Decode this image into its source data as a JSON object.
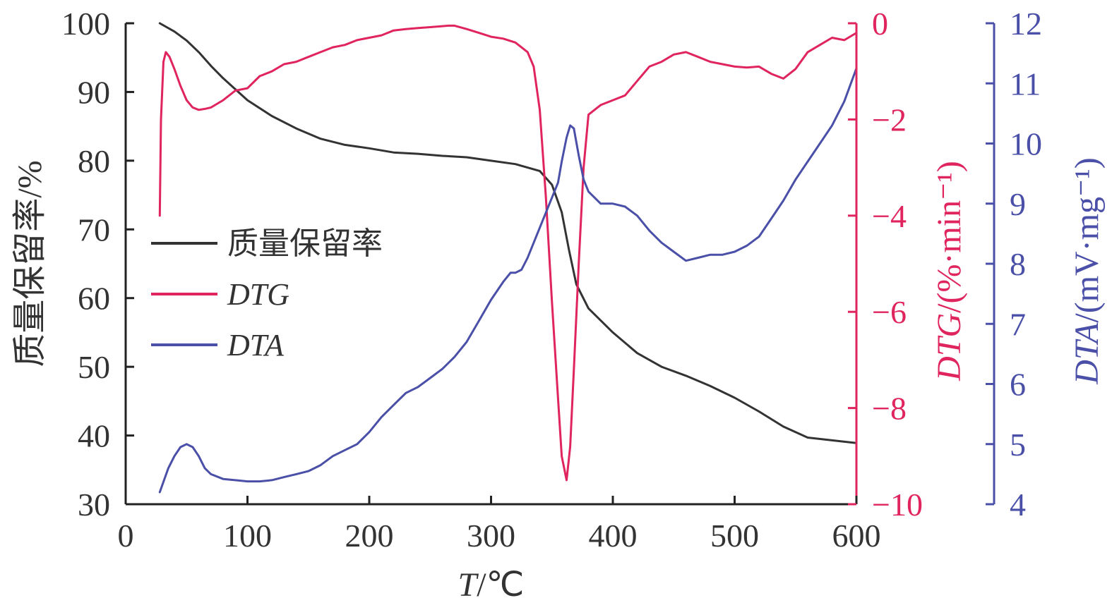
{
  "chart_data": {
    "type": "line",
    "xlabel": "T/℃",
    "xlim": [
      0,
      600
    ],
    "x_ticks": [
      0,
      100,
      200,
      300,
      400,
      500,
      600
    ],
    "grid": false,
    "legend_position": "center-left",
    "axes": {
      "left": {
        "label": "质量保留率/%",
        "lim": [
          30,
          100
        ],
        "ticks": [
          30,
          40,
          50,
          60,
          70,
          80,
          90,
          100
        ],
        "color": "#333333"
      },
      "right1": {
        "label": "DTG/(%·min⁻¹)",
        "lim": [
          -10,
          0
        ],
        "ticks": [
          0,
          -2,
          -4,
          -6,
          -8,
          -10
        ],
        "tick_labels": [
          "0",
          "−2",
          "−4",
          "−6",
          "−8",
          "−10"
        ],
        "color": "#e0245e"
      },
      "right2": {
        "label": "DTA/(mV·mg⁻¹)",
        "lim": [
          4,
          12
        ],
        "ticks": [
          4,
          5,
          6,
          7,
          8,
          9,
          10,
          11,
          12
        ],
        "color": "#4a4fa8"
      }
    },
    "series": [
      {
        "name": "质量保留率",
        "axis": "left",
        "color": "#333333",
        "x": [
          28,
          40,
          50,
          60,
          70,
          80,
          100,
          120,
          140,
          160,
          180,
          200,
          220,
          240,
          260,
          280,
          300,
          320,
          340,
          350,
          358,
          364,
          370,
          380,
          400,
          420,
          440,
          460,
          480,
          500,
          520,
          540,
          560,
          580,
          600
        ],
        "y": [
          100,
          98.8,
          97.5,
          95.8,
          93.8,
          92,
          88.8,
          86.5,
          84.7,
          83.2,
          82.3,
          81.8,
          81.2,
          81,
          80.7,
          80.5,
          80,
          79.5,
          78.5,
          76.5,
          72.5,
          67,
          62,
          58.5,
          55,
          52,
          50,
          48.7,
          47.2,
          45.5,
          43.5,
          41.3,
          39.7,
          39.3,
          38.9
        ]
      },
      {
        "name": "DTG",
        "axis": "right1",
        "color": "#e0245e",
        "x": [
          28,
          29,
          31,
          33,
          36,
          40,
          45,
          50,
          55,
          60,
          65,
          70,
          80,
          90,
          100,
          110,
          120,
          130,
          140,
          150,
          160,
          170,
          180,
          190,
          200,
          210,
          220,
          230,
          240,
          250,
          260,
          265,
          270,
          280,
          290,
          300,
          310,
          320,
          330,
          335,
          340,
          345,
          350,
          355,
          358,
          362,
          365,
          368,
          372,
          376,
          380,
          390,
          400,
          410,
          420,
          430,
          440,
          450,
          460,
          470,
          480,
          490,
          500,
          510,
          520,
          530,
          540,
          550,
          560,
          570,
          580,
          590,
          600
        ],
        "y": [
          -4,
          -2,
          -0.8,
          -0.6,
          -0.7,
          -0.95,
          -1.3,
          -1.6,
          -1.75,
          -1.8,
          -1.78,
          -1.75,
          -1.6,
          -1.4,
          -1.35,
          -1.1,
          -1.0,
          -0.85,
          -0.8,
          -0.7,
          -0.6,
          -0.5,
          -0.45,
          -0.35,
          -0.3,
          -0.25,
          -0.15,
          -0.12,
          -0.1,
          -0.08,
          -0.06,
          -0.05,
          -0.05,
          -0.12,
          -0.2,
          -0.28,
          -0.32,
          -0.4,
          -0.6,
          -0.9,
          -1.8,
          -3.6,
          -5.8,
          -7.8,
          -9.0,
          -9.5,
          -8.8,
          -7.2,
          -5.0,
          -3.0,
          -1.9,
          -1.7,
          -1.6,
          -1.5,
          -1.2,
          -0.9,
          -0.8,
          -0.65,
          -0.6,
          -0.7,
          -0.8,
          -0.85,
          -0.9,
          -0.92,
          -0.9,
          -1.05,
          -1.15,
          -0.95,
          -0.6,
          -0.45,
          -0.3,
          -0.35,
          -0.2
        ]
      },
      {
        "name": "DTA",
        "axis": "right2",
        "color": "#4a4fa8",
        "x": [
          28,
          35,
          40,
          45,
          50,
          55,
          60,
          65,
          70,
          80,
          90,
          100,
          110,
          120,
          130,
          140,
          150,
          160,
          170,
          180,
          190,
          200,
          210,
          220,
          230,
          240,
          250,
          260,
          270,
          280,
          290,
          300,
          310,
          316,
          320,
          325,
          330,
          340,
          350,
          355,
          358,
          362,
          365,
          368,
          372,
          376,
          380,
          390,
          400,
          410,
          420,
          430,
          440,
          450,
          460,
          470,
          480,
          490,
          500,
          510,
          520,
          530,
          540,
          550,
          560,
          570,
          580,
          590,
          600
        ],
        "y": [
          4.2,
          4.6,
          4.8,
          4.95,
          5.0,
          4.95,
          4.8,
          4.6,
          4.5,
          4.42,
          4.4,
          4.38,
          4.38,
          4.4,
          4.45,
          4.5,
          4.55,
          4.65,
          4.8,
          4.9,
          5.0,
          5.2,
          5.45,
          5.65,
          5.85,
          5.95,
          6.1,
          6.25,
          6.45,
          6.7,
          7.05,
          7.4,
          7.7,
          7.85,
          7.85,
          7.9,
          8.1,
          8.6,
          9.1,
          9.35,
          9.7,
          10.1,
          10.3,
          10.25,
          9.8,
          9.4,
          9.2,
          9.0,
          9.0,
          8.95,
          8.8,
          8.55,
          8.35,
          8.2,
          8.05,
          8.1,
          8.15,
          8.15,
          8.2,
          8.3,
          8.45,
          8.75,
          9.05,
          9.4,
          9.7,
          10.0,
          10.3,
          10.7,
          11.25
        ]
      }
    ]
  }
}
